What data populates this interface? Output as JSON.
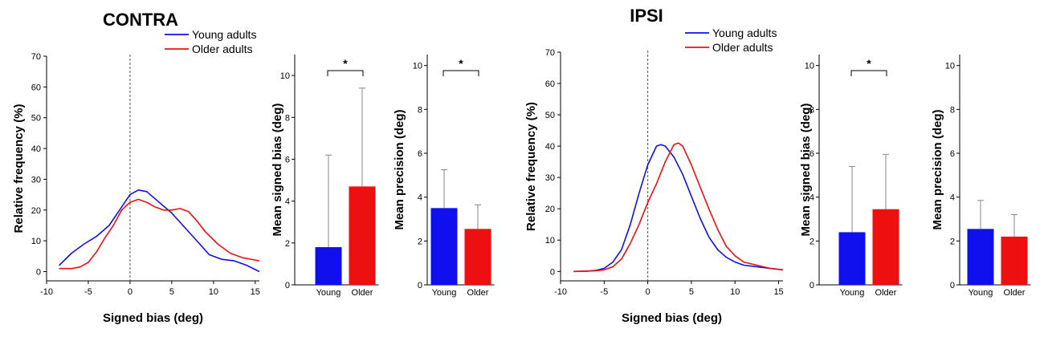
{
  "colors": {
    "young": "#1010ee",
    "older": "#ee1010"
  },
  "panels": [
    {
      "title": "CONTRA"
    },
    {
      "title": "IPSI"
    }
  ],
  "chart_data": [
    {
      "type": "line",
      "panel": "CONTRA",
      "xlabel": "Signed bias (deg)",
      "ylabel": "Relative frequency (%)",
      "xlim": [
        -10,
        15.5
      ],
      "ylim": [
        -3,
        70
      ],
      "xticks": [
        -10,
        -5,
        0,
        5,
        10,
        15
      ],
      "yticks": [
        0,
        10,
        20,
        30,
        40,
        50,
        60,
        70
      ],
      "vline": 0,
      "legend": [
        "Young adults",
        "Older adults"
      ],
      "series": [
        {
          "name": "Young adults",
          "points": [
            [
              -8.5,
              2
            ],
            [
              -7,
              6
            ],
            [
              -5.5,
              9
            ],
            [
              -4,
              11.5
            ],
            [
              -2.5,
              15
            ],
            [
              -1,
              21
            ],
            [
              0,
              25
            ],
            [
              1,
              26.5
            ],
            [
              2,
              26
            ],
            [
              3.5,
              22.5
            ],
            [
              5,
              19
            ],
            [
              6.5,
              14.5
            ],
            [
              8,
              10
            ],
            [
              9.5,
              5.5
            ],
            [
              11,
              4
            ],
            [
              12.5,
              3.5
            ],
            [
              14,
              2
            ],
            [
              15.5,
              0
            ]
          ]
        },
        {
          "name": "Older adults",
          "points": [
            [
              -8.5,
              1
            ],
            [
              -7,
              1
            ],
            [
              -6,
              1.5
            ],
            [
              -5,
              3
            ],
            [
              -4,
              6.5
            ],
            [
              -3,
              11
            ],
            [
              -2,
              15
            ],
            [
              -1,
              20
            ],
            [
              0,
              22.5
            ],
            [
              1,
              23.5
            ],
            [
              2,
              22.5
            ],
            [
              3,
              21
            ],
            [
              4,
              20
            ],
            [
              5,
              20
            ],
            [
              6,
              20.5
            ],
            [
              7,
              19.5
            ],
            [
              8,
              16.5
            ],
            [
              9,
              13
            ],
            [
              10.5,
              9
            ],
            [
              12,
              6
            ],
            [
              13.5,
              4.5
            ],
            [
              15.5,
              3.5
            ]
          ]
        }
      ]
    },
    {
      "type": "bar",
      "panel": "CONTRA",
      "ylabel": "Mean signed bias (deg)",
      "categories": [
        "Young",
        "Older"
      ],
      "values": [
        1.8,
        4.7
      ],
      "errors": [
        4.4,
        4.7
      ],
      "ylim": [
        0,
        11
      ],
      "yticks": [
        0,
        2,
        4,
        6,
        8,
        10
      ],
      "significance": "*"
    },
    {
      "type": "bar",
      "panel": "CONTRA",
      "ylabel": "Mean precision (deg)",
      "categories": [
        "Young",
        "Older"
      ],
      "values": [
        3.5,
        2.55
      ],
      "errors": [
        1.75,
        1.1
      ],
      "ylim": [
        0,
        10.5
      ],
      "yticks": [
        0,
        2,
        4,
        6,
        8,
        10
      ],
      "significance": "*"
    },
    {
      "type": "line",
      "panel": "IPSI",
      "xlabel": "Signed bias (deg)",
      "ylabel": "Relative frequency (%)",
      "xlim": [
        -10,
        15.5
      ],
      "ylim": [
        -3,
        70
      ],
      "xticks": [
        -10,
        -5,
        0,
        5,
        10,
        15
      ],
      "yticks": [
        0,
        10,
        20,
        30,
        40,
        50,
        60,
        70
      ],
      "vline": 0,
      "legend": [
        "Young adults",
        "Older adults"
      ],
      "series": [
        {
          "name": "Young adults",
          "points": [
            [
              -8.5,
              0
            ],
            [
              -7,
              0.1
            ],
            [
              -6,
              0.3
            ],
            [
              -5,
              1
            ],
            [
              -4,
              3
            ],
            [
              -3,
              7
            ],
            [
              -2,
              15
            ],
            [
              -1,
              25
            ],
            [
              0,
              34
            ],
            [
              1,
              40
            ],
            [
              1.5,
              40.5
            ],
            [
              2,
              40
            ],
            [
              3,
              36.5
            ],
            [
              4,
              31
            ],
            [
              5,
              24
            ],
            [
              6,
              17
            ],
            [
              7,
              11
            ],
            [
              8,
              7
            ],
            [
              9,
              4.5
            ],
            [
              10,
              3
            ],
            [
              11,
              2
            ],
            [
              12.5,
              1.5
            ],
            [
              14,
              1
            ],
            [
              15.5,
              0.5
            ]
          ]
        },
        {
          "name": "Older adults",
          "points": [
            [
              -8.5,
              0
            ],
            [
              -7,
              0.1
            ],
            [
              -6,
              0.2
            ],
            [
              -5,
              0.5
            ],
            [
              -4,
              1.5
            ],
            [
              -3,
              4
            ],
            [
              -2,
              9
            ],
            [
              -1,
              15
            ],
            [
              0,
              22
            ],
            [
              1,
              28
            ],
            [
              2,
              35
            ],
            [
              3,
              40.5
            ],
            [
              3.5,
              41
            ],
            [
              4,
              40
            ],
            [
              5,
              34
            ],
            [
              6,
              27
            ],
            [
              7,
              20
            ],
            [
              8,
              13.5
            ],
            [
              9,
              8
            ],
            [
              10,
              5
            ],
            [
              11,
              3
            ],
            [
              12.5,
              2
            ],
            [
              14,
              1
            ],
            [
              15.5,
              0.5
            ]
          ]
        }
      ]
    },
    {
      "type": "bar",
      "panel": "IPSI",
      "ylabel": "Mean signed bias (deg)",
      "categories": [
        "Young",
        "Older"
      ],
      "values": [
        2.4,
        3.45
      ],
      "errors": [
        3.0,
        2.5
      ],
      "ylim": [
        0,
        10.5
      ],
      "yticks": [
        0,
        2,
        4,
        6,
        8,
        10
      ],
      "significance": "*"
    },
    {
      "type": "bar",
      "panel": "IPSI",
      "ylabel": "Mean precision (deg)",
      "categories": [
        "Young",
        "Older"
      ],
      "values": [
        2.55,
        2.2
      ],
      "errors": [
        1.3,
        1.0
      ],
      "ylim": [
        0,
        10.5
      ],
      "yticks": [
        0,
        2,
        4,
        6,
        8,
        10
      ],
      "significance": ""
    }
  ]
}
